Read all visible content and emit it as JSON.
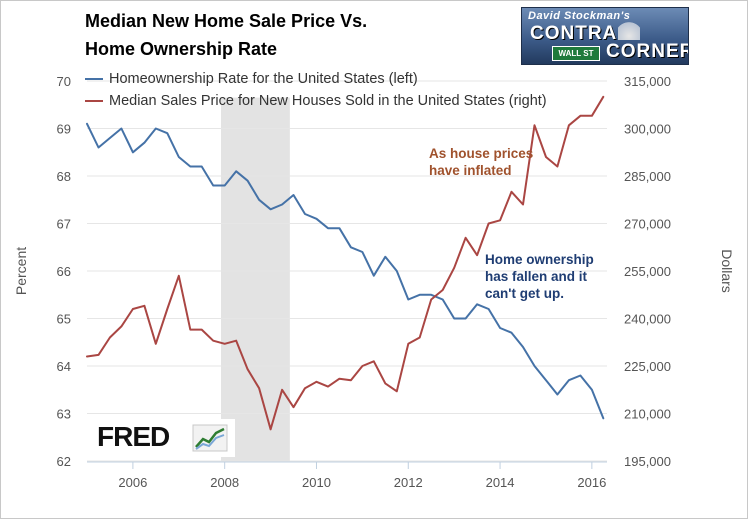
{
  "titles": {
    "line1": "Median New Home Sale Price Vs.",
    "line2": "Home Ownership Rate"
  },
  "logo": {
    "top_line": "David Stockman's",
    "word1": "CONTRA",
    "word2": "CORNER",
    "sign": "WALL ST"
  },
  "fred_logo": "FRED",
  "colors": {
    "homeownership": "#4572a7",
    "price": "#aa4643",
    "recession": "#e3e3e3",
    "annotation_price": "#a0522d",
    "annotation_ownership": "#1f3d73"
  },
  "annotations": {
    "price": [
      "As house prices",
      "have inflated"
    ],
    "ownership": [
      "Home ownership",
      "has fallen and it",
      "can't get up."
    ]
  },
  "chart_data": {
    "type": "line",
    "ylabel_left": "Percent",
    "ylabel_right": "Dollars",
    "x_ticks": [
      "2006",
      "2008",
      "2010",
      "2012",
      "2014",
      "2016"
    ],
    "x_range": [
      2005.0,
      2016.33
    ],
    "y_left_ticks": [
      "62",
      "63",
      "64",
      "65",
      "66",
      "67",
      "68",
      "69",
      "70"
    ],
    "y_left_range": [
      62,
      70
    ],
    "y_right_ticks": [
      "195,000",
      "210,000",
      "225,000",
      "240,000",
      "255,000",
      "270,000",
      "285,000",
      "300,000",
      "315,000"
    ],
    "y_right_range": [
      195000,
      315000
    ],
    "recession": [
      2007.92,
      2009.42
    ],
    "legend_position": "top-left",
    "series": [
      {
        "name": "Homeownership Rate for the United States (left)",
        "axis": "left",
        "x": [
          2005.0,
          2005.25,
          2005.5,
          2005.75,
          2006.0,
          2006.25,
          2006.5,
          2006.75,
          2007.0,
          2007.25,
          2007.5,
          2007.75,
          2008.0,
          2008.25,
          2008.5,
          2008.75,
          2009.0,
          2009.25,
          2009.5,
          2009.75,
          2010.0,
          2010.25,
          2010.5,
          2010.75,
          2011.0,
          2011.25,
          2011.5,
          2011.75,
          2012.0,
          2012.25,
          2012.5,
          2012.75,
          2013.0,
          2013.25,
          2013.5,
          2013.75,
          2014.0,
          2014.25,
          2014.5,
          2014.75,
          2015.0,
          2015.25,
          2015.5,
          2015.75,
          2016.0,
          2016.25
        ],
        "values": [
          69.1,
          68.6,
          68.8,
          69.0,
          68.5,
          68.7,
          69.0,
          68.9,
          68.4,
          68.2,
          68.2,
          67.8,
          67.8,
          68.1,
          67.9,
          67.5,
          67.3,
          67.4,
          67.6,
          67.2,
          67.1,
          66.9,
          66.9,
          66.5,
          66.4,
          65.9,
          66.3,
          66.0,
          65.4,
          65.5,
          65.5,
          65.4,
          65.0,
          65.0,
          65.3,
          65.2,
          64.8,
          64.7,
          64.4,
          64.0,
          63.7,
          63.4,
          63.7,
          63.8,
          63.5,
          62.9
        ]
      },
      {
        "name": "Median Sales Price for New Houses Sold in the United States (right)",
        "axis": "right",
        "x": [
          2005.0,
          2005.25,
          2005.5,
          2005.75,
          2006.0,
          2006.25,
          2006.5,
          2006.75,
          2007.0,
          2007.25,
          2007.5,
          2007.75,
          2008.0,
          2008.25,
          2008.5,
          2008.75,
          2009.0,
          2009.25,
          2009.5,
          2009.75,
          2010.0,
          2010.25,
          2010.5,
          2010.75,
          2011.0,
          2011.25,
          2011.5,
          2011.75,
          2012.0,
          2012.25,
          2012.5,
          2012.75,
          2013.0,
          2013.25,
          2013.5,
          2013.75,
          2014.0,
          2014.25,
          2014.5,
          2014.75,
          2015.0,
          2015.25,
          2015.5,
          2015.75,
          2016.0,
          2016.25
        ],
        "values": [
          228000,
          228500,
          234000,
          237500,
          243000,
          244000,
          232000,
          243000,
          253500,
          236500,
          236500,
          233000,
          232000,
          233000,
          224000,
          218000,
          205000,
          217500,
          212000,
          218000,
          220000,
          218500,
          221000,
          220500,
          225000,
          226500,
          219500,
          217000,
          232000,
          234000,
          246000,
          249000,
          256000,
          265500,
          260000,
          270000,
          271000,
          280000,
          276000,
          301000,
          291000,
          288000,
          301000,
          304000,
          304000,
          310000
        ]
      }
    ]
  }
}
